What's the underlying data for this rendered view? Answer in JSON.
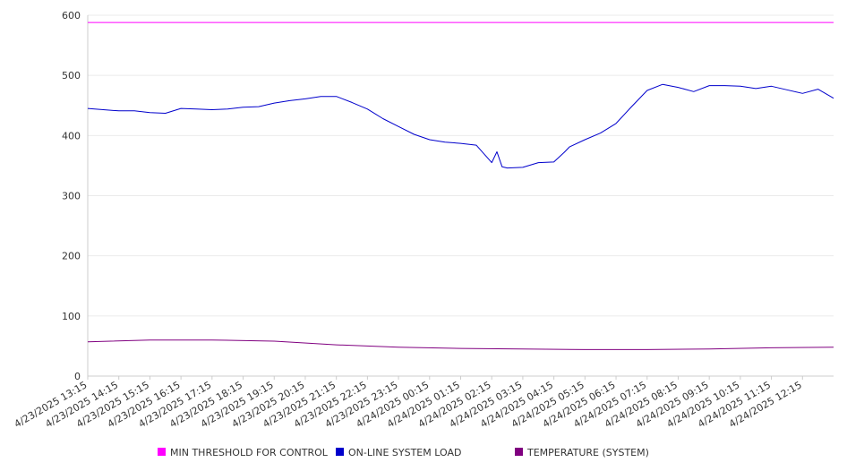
{
  "chart_data": {
    "type": "line",
    "title": "",
    "xlabel": "",
    "ylabel": "",
    "ylim": [
      0,
      600
    ],
    "yticks": [
      0,
      100,
      200,
      300,
      400,
      500,
      600
    ],
    "grid": true,
    "legend_position": "bottom",
    "x_tick_labels": [
      "4/23/2025 13:15",
      "4/23/2025 14:15",
      "4/23/2025 15:15",
      "4/23/2025 16:15",
      "4/23/2025 17:15",
      "4/23/2025 18:15",
      "4/23/2025 19:15",
      "4/23/2025 20:15",
      "4/23/2025 21:15",
      "4/23/2025 22:15",
      "4/23/2025 23:15",
      "4/24/2025 00:15",
      "4/24/2025 01:15",
      "4/24/2025 02:15",
      "4/24/2025 03:15",
      "4/24/2025 04:15",
      "4/24/2025 05:15",
      "4/24/2025 06:15",
      "4/24/2025 07:15",
      "4/24/2025 08:15",
      "4/24/2025 09:15",
      "4/24/2025 10:15",
      "4/24/2025 11:15",
      "4/24/2025 12:15"
    ],
    "x_range": [
      "4/23/2025 13:15",
      "4/24/2025 13:15"
    ],
    "series": [
      {
        "name": "MIN THRESHOLD FOR CONTROL",
        "color": "#ff00ff",
        "x": [
          "4/23/2025 13:15",
          "4/24/2025 13:15"
        ],
        "values": [
          588,
          588
        ]
      },
      {
        "name": "ON-LINE SYSTEM LOAD",
        "color": "#0000cc",
        "x": [
          "4/23/2025 13:15",
          "4/23/2025 13:45",
          "4/23/2025 14:15",
          "4/23/2025 14:45",
          "4/23/2025 15:15",
          "4/23/2025 15:45",
          "4/23/2025 16:15",
          "4/23/2025 16:45",
          "4/23/2025 17:15",
          "4/23/2025 17:45",
          "4/23/2025 18:15",
          "4/23/2025 18:45",
          "4/23/2025 19:15",
          "4/23/2025 19:45",
          "4/23/2025 20:15",
          "4/23/2025 20:45",
          "4/23/2025 21:15",
          "4/23/2025 21:45",
          "4/23/2025 22:15",
          "4/23/2025 22:45",
          "4/23/2025 23:15",
          "4/23/2025 23:45",
          "4/24/2025 00:15",
          "4/24/2025 00:45",
          "4/24/2025 01:15",
          "4/24/2025 01:45",
          "4/24/2025 02:15",
          "4/24/2025 02:25",
          "4/24/2025 02:35",
          "4/24/2025 02:45",
          "4/24/2025 03:15",
          "4/24/2025 03:45",
          "4/24/2025 04:15",
          "4/24/2025 04:35",
          "4/24/2025 04:45",
          "4/24/2025 05:15",
          "4/24/2025 05:45",
          "4/24/2025 06:15",
          "4/24/2025 06:45",
          "4/24/2025 07:15",
          "4/24/2025 07:45",
          "4/24/2025 08:15",
          "4/24/2025 08:45",
          "4/24/2025 09:15",
          "4/24/2025 09:45",
          "4/24/2025 10:15",
          "4/24/2025 10:45",
          "4/24/2025 11:15",
          "4/24/2025 11:45",
          "4/24/2025 12:15",
          "4/24/2025 12:45",
          "4/24/2025 13:15"
        ],
        "values": [
          445,
          443,
          441,
          441,
          438,
          437,
          445,
          444,
          443,
          444,
          447,
          448,
          454,
          458,
          461,
          465,
          465,
          455,
          444,
          428,
          415,
          402,
          393,
          389,
          387,
          384,
          355,
          373,
          348,
          346,
          347,
          355,
          356,
          372,
          381,
          393,
          404,
          420,
          448,
          475,
          485,
          480,
          473,
          483,
          483,
          482,
          478,
          482,
          476,
          470,
          477,
          462
        ]
      },
      {
        "name": "TEMPERATURE (SYSTEM)",
        "color": "#800080",
        "x": [
          "4/23/2025 13:15",
          "4/23/2025 15:15",
          "4/23/2025 17:15",
          "4/23/2025 19:15",
          "4/23/2025 21:15",
          "4/23/2025 23:15",
          "4/24/2025 01:15",
          "4/24/2025 03:15",
          "4/24/2025 05:15",
          "4/24/2025 07:15",
          "4/24/2025 09:15",
          "4/24/2025 11:15",
          "4/24/2025 13:15"
        ],
        "values": [
          57,
          60,
          60,
          58,
          52,
          48,
          46,
          45,
          44,
          44,
          45,
          47,
          48
        ]
      }
    ]
  }
}
